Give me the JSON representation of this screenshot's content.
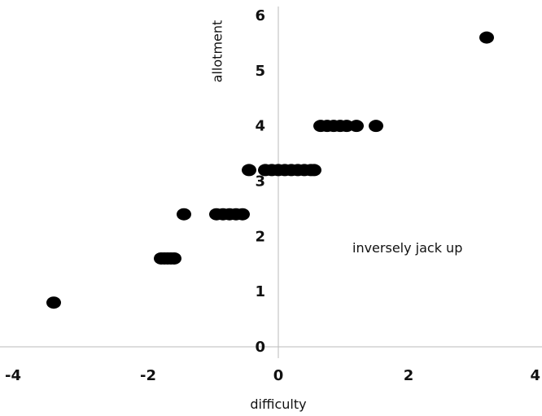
{
  "chart_data": {
    "type": "scatter",
    "xlabel": "difficulty",
    "ylabel": "allotment",
    "xlim": [
      -4,
      4
    ],
    "ylim": [
      0,
      6
    ],
    "x_ticks": [
      "-4",
      "-2",
      "0",
      "2",
      "4"
    ],
    "y_ticks": [
      "0",
      "1",
      "2",
      "3",
      "4",
      "5",
      "6"
    ],
    "grid": false,
    "marker_color": "#000000",
    "axis_color": "#bbbbbb",
    "annotation": "inversely jack up",
    "points": [
      {
        "x": -3.45,
        "y": 0.8
      },
      {
        "x": -1.8,
        "y": 1.6
      },
      {
        "x": -1.75,
        "y": 1.6
      },
      {
        "x": -1.7,
        "y": 1.6
      },
      {
        "x": -1.65,
        "y": 1.6
      },
      {
        "x": -1.6,
        "y": 1.6
      },
      {
        "x": -1.45,
        "y": 2.4
      },
      {
        "x": -0.95,
        "y": 2.4
      },
      {
        "x": -0.85,
        "y": 2.4
      },
      {
        "x": -0.75,
        "y": 2.4
      },
      {
        "x": -0.65,
        "y": 2.4
      },
      {
        "x": -0.55,
        "y": 2.4
      },
      {
        "x": -0.45,
        "y": 3.2
      },
      {
        "x": -0.2,
        "y": 3.2
      },
      {
        "x": -0.1,
        "y": 3.2
      },
      {
        "x": 0.0,
        "y": 3.2
      },
      {
        "x": 0.1,
        "y": 3.2
      },
      {
        "x": 0.2,
        "y": 3.2
      },
      {
        "x": 0.3,
        "y": 3.2
      },
      {
        "x": 0.4,
        "y": 3.2
      },
      {
        "x": 0.5,
        "y": 3.2
      },
      {
        "x": 0.55,
        "y": 3.2
      },
      {
        "x": 0.65,
        "y": 4.0
      },
      {
        "x": 0.75,
        "y": 4.0
      },
      {
        "x": 0.85,
        "y": 4.0
      },
      {
        "x": 0.95,
        "y": 4.0
      },
      {
        "x": 1.05,
        "y": 4.0
      },
      {
        "x": 1.2,
        "y": 4.0
      },
      {
        "x": 1.5,
        "y": 4.0
      },
      {
        "x": 3.2,
        "y": 5.6
      }
    ]
  }
}
